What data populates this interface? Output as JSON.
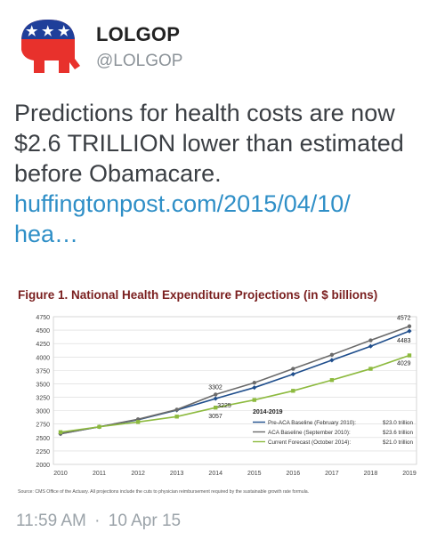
{
  "tweet": {
    "display_name": "LOLGOP",
    "handle": "@LOLGOP",
    "text": "Predictions for health costs are now $2.6 TRILLION lower than estimated before Obamacare.",
    "link_line1": "huffingtonpost.com/2015/04/10/",
    "link_line2": "hea…",
    "time": "11:59 AM",
    "separator": "·",
    "date": "10 Apr 15"
  },
  "colors": {
    "avatar_red": "#e8312c",
    "avatar_blue": "#1f3f9a",
    "link": "#2f8fc7",
    "series_pre": "#1f4e8c",
    "series_aca": "#6b6b6b",
    "series_current": "#8dba3f",
    "chart_title": "#7a1f1f"
  },
  "chart_data": {
    "type": "line",
    "title": "Figure 1. National Health Expenditure Projections (in $ billions)",
    "x": [
      2010,
      2011,
      2012,
      2013,
      2014,
      2015,
      2016,
      2017,
      2018,
      2019
    ],
    "ylim": [
      2000,
      4750
    ],
    "yticks": [
      2000,
      2250,
      2500,
      2750,
      3000,
      3250,
      3500,
      3750,
      4000,
      4250,
      4500,
      4750
    ],
    "grid": true,
    "legend_title": "2014-2019",
    "legend_position": "bottom-right",
    "series": [
      {
        "name": "Pre-ACA Baseline (February 2010):",
        "total": "$23.0 trillion",
        "values": [
          2570,
          2700,
          2830,
          3010,
          3225,
          3430,
          3680,
          3940,
          4200,
          4483
        ]
      },
      {
        "name": "ACA Baseline (September 2010):",
        "total": "$23.6 trillion",
        "values": [
          2570,
          2700,
          2840,
          3020,
          3302,
          3520,
          3780,
          4040,
          4310,
          4572
        ]
      },
      {
        "name": "Current Forecast (October 2014):",
        "total": "$21.0 trillion",
        "values": [
          2600,
          2700,
          2790,
          2890,
          3057,
          3200,
          3370,
          3570,
          3780,
          4029
        ]
      }
    ],
    "annotations": [
      "3302",
      "3225",
      "3057",
      "4572",
      "4483",
      "4029"
    ],
    "source": "Source: CMS Office of the Actuary. All projections include the cuts to physician reimbursement required by the sustainable growth rate formula."
  }
}
